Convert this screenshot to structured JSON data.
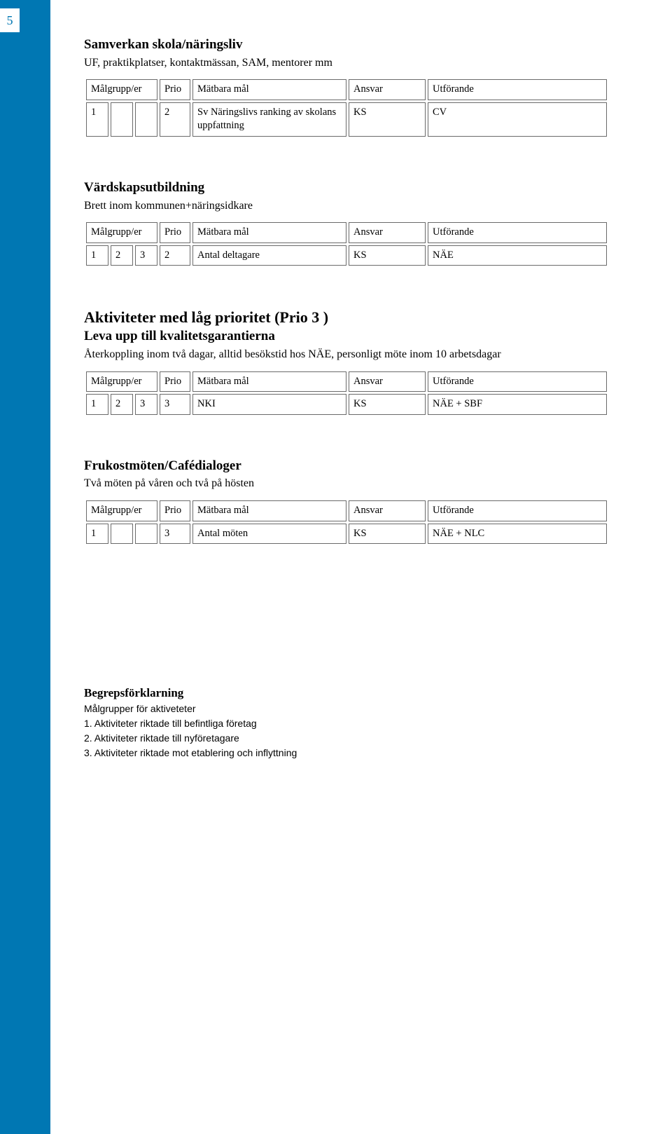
{
  "page_number": "5",
  "labels": {
    "malgrupp": "Målgrupp/er",
    "prio": "Prio",
    "matbara": "Mätbara mål",
    "ansvar": "Ansvar",
    "utforande": "Utförande"
  },
  "section1": {
    "title": "Samverkan skola/näringsliv",
    "subtitle": "UF, praktikplatser, kontaktmässan, SAM, mentorer mm",
    "row": {
      "c1": "1",
      "c2": "",
      "c3": "",
      "prio": "2",
      "mat": "Sv Näringslivs ranking av skolans uppfattning",
      "ansvar": "KS",
      "utf": "CV"
    }
  },
  "section2": {
    "title": "Värdskapsutbildning",
    "subtitle": "Brett inom kommunen+näringsidkare",
    "row": {
      "c1": "1",
      "c2": "2",
      "c3": "3",
      "prio": "2",
      "mat": "Antal deltagare",
      "ansvar": "KS",
      "utf": "NÄE"
    }
  },
  "section3": {
    "big_title": "Aktiviteter med låg prioritet (Prio 3 )",
    "title": "Leva upp till kvalitetsgarantierna",
    "subtitle": "Återkoppling inom två dagar, alltid besökstid hos NÄE, personligt möte inom 10 arbetsdagar",
    "row": {
      "c1": "1",
      "c2": "2",
      "c3": "3",
      "prio": "3",
      "mat": "NKI",
      "ansvar": "KS",
      "utf": "NÄE + SBF"
    }
  },
  "section4": {
    "title": "Frukostmöten/Cafédialoger",
    "subtitle": "Två möten på våren och två på hösten",
    "row": {
      "c1": "1",
      "c2": "",
      "c3": "",
      "prio": "3",
      "mat": "Antal möten",
      "ansvar": "KS",
      "utf": "NÄE + NLC"
    }
  },
  "glossary": {
    "title": "Begrepsförklarning",
    "sub": "Målgrupper för aktiveteter",
    "items": [
      "1. Aktiviteter riktade till befintliga företag",
      "2. Aktiviteter riktade till nyföretagare",
      "3. Aktiviteter riktade mot etablering och inflyttning"
    ]
  },
  "colors": {
    "sidebar": "#0077b3",
    "border": "#6a6a6a",
    "text": "#000000",
    "bg": "#ffffff"
  }
}
